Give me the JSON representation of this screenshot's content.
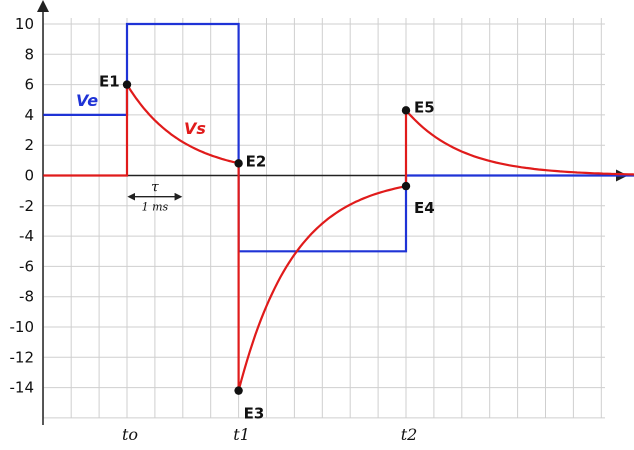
{
  "chart_data": {
    "type": "line",
    "title": "",
    "xlabel": "",
    "ylabel": "",
    "ylim": [
      -16,
      10
    ],
    "xlim": [
      -1.5,
      9.6
    ],
    "y_ticks": [
      10,
      8,
      6,
      4,
      2,
      0,
      -2,
      -4,
      -6,
      -8,
      -10,
      -12,
      -14
    ],
    "x_ticks": [
      {
        "x": 0,
        "label": "to"
      },
      {
        "x": 2,
        "label": "t1"
      },
      {
        "x": 5,
        "label": "t2"
      }
    ],
    "grid": true,
    "colors": {
      "Ve": "#1f33d6",
      "Vs": "#e01b1b",
      "grid": "#cfcfcf",
      "axis": "#222222"
    },
    "series": [
      {
        "name": "Ve",
        "color": "#1f33d6",
        "points": [
          [
            -1.5,
            4
          ],
          [
            0,
            4
          ],
          [
            0,
            10
          ],
          [
            2,
            10
          ],
          [
            2,
            -5
          ],
          [
            5,
            -5
          ],
          [
            5,
            0
          ],
          [
            9.6,
            0
          ]
        ]
      },
      {
        "name": "Vs",
        "color": "#e01b1b",
        "segments": [
          {
            "type": "line",
            "from": [
              -1.5,
              0
            ],
            "to": [
              0,
              0
            ]
          },
          {
            "type": "line",
            "from": [
              0,
              0
            ],
            "to": [
              0,
              6
            ]
          },
          {
            "type": "exp",
            "t0": 0,
            "t1": 2,
            "v0": 6,
            "vinf": 0,
            "tau": 1
          },
          {
            "type": "line",
            "from": [
              2,
              0.8
            ],
            "to": [
              2,
              -14.2
            ]
          },
          {
            "type": "exp",
            "t0": 2,
            "t1": 5,
            "v0": -14.2,
            "vinf": 0,
            "tau": 1
          },
          {
            "type": "line",
            "from": [
              5,
              -0.7
            ],
            "to": [
              5,
              4.3
            ]
          },
          {
            "type": "exp",
            "t0": 5,
            "t1": 9.6,
            "v0": 4.3,
            "vinf": 0,
            "tau": 1
          }
        ]
      }
    ],
    "annotations": [
      {
        "name": "E1",
        "x": 0,
        "y": 6
      },
      {
        "name": "E2",
        "x": 2,
        "y": 0.8
      },
      {
        "name": "E3",
        "x": 2,
        "y": -14.2
      },
      {
        "name": "E4",
        "x": 5,
        "y": -0.7
      },
      {
        "name": "E5",
        "x": 5,
        "y": 4.3
      }
    ],
    "tau_marker": {
      "symbol": "τ",
      "label": "1 ms",
      "from": 0,
      "to": 1,
      "y": -1.4
    }
  }
}
